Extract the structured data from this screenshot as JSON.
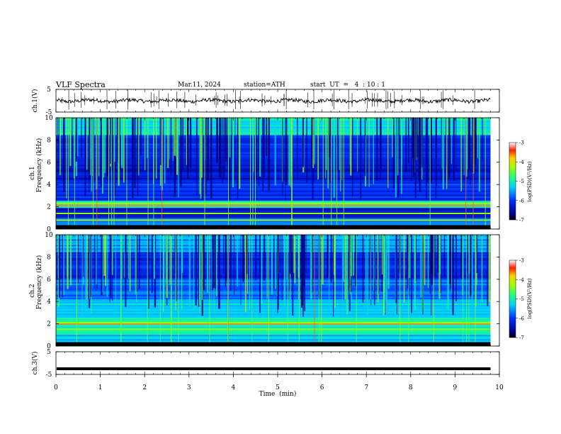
{
  "header": {
    "title": "VLF  Spectra",
    "date": "Mar.11, 2024",
    "station": "station=ATH",
    "start": "start  UT  =   4  : 10 : 1"
  },
  "chart_data": [
    {
      "type": "line",
      "panel": "ch1-waveform",
      "ylabel": "ch.1(V)",
      "ylim": [
        -5,
        5
      ],
      "yticks": [
        {
          "value": 5,
          "label": "5"
        },
        {
          "value": -5,
          "label": "-5"
        }
      ],
      "xlim": [
        0,
        10
      ]
    },
    {
      "type": "heatmap",
      "panel": "ch1-spectrogram",
      "ylabel": "ch.1",
      "ylabel2": "Frequency (kHz)",
      "ylim": [
        0,
        10
      ],
      "xlim": [
        0,
        10
      ],
      "yticks": [
        {
          "value": 0,
          "label": "0"
        },
        {
          "value": 2,
          "label": "2"
        },
        {
          "value": 4,
          "label": "4"
        },
        {
          "value": 6,
          "label": "6"
        },
        {
          "value": 8,
          "label": "8"
        },
        {
          "value": 10,
          "label": "10"
        }
      ],
      "data_end_min": 9.8,
      "strong_bands_khz": [
        2.1,
        2.3,
        1.4,
        0.8
      ],
      "colorbar": {
        "label": "log(PSD)(V²/Hz)",
        "range": [
          -7,
          -3
        ],
        "ticks": [
          "-3",
          "-4",
          "-5",
          "-6",
          "-7"
        ]
      }
    },
    {
      "type": "heatmap",
      "panel": "ch2-spectrogram",
      "ylabel": "ch.2",
      "ylabel2": "Frequency (kHz)",
      "ylim": [
        0,
        10
      ],
      "xlim": [
        0,
        10
      ],
      "yticks": [
        {
          "value": 0,
          "label": "0"
        },
        {
          "value": 2,
          "label": "2"
        },
        {
          "value": 4,
          "label": "4"
        },
        {
          "value": 6,
          "label": "6"
        },
        {
          "value": 8,
          "label": "8"
        },
        {
          "value": 10,
          "label": "10"
        }
      ],
      "data_end_min": 9.8,
      "strong_bands_khz": [
        2.0,
        2.1,
        1.5
      ],
      "colorbar": {
        "label": "log(PSD)(V²/Hz)",
        "range": [
          -7,
          -3
        ],
        "ticks": [
          "-3",
          "-4",
          "-5",
          "-6",
          "-7"
        ]
      }
    },
    {
      "type": "line",
      "panel": "ch3-waveform",
      "ylabel": "ch.3(V)",
      "ylim": [
        -5,
        5
      ],
      "yticks": [
        {
          "value": 5,
          "label": "5"
        },
        {
          "value": -5,
          "label": "-5"
        }
      ],
      "xlim": [
        0,
        10
      ],
      "xlabel": "Time  (min)",
      "xticks": [
        "0",
        "1",
        "2",
        "3",
        "4",
        "5",
        "6",
        "7",
        "8",
        "9",
        "10"
      ],
      "level_v": -2.5
    }
  ]
}
